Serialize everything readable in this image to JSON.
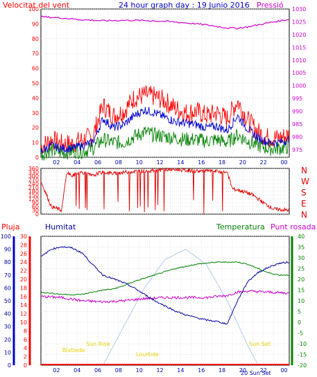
{
  "header": {
    "wind_label": "Velocitat del vent",
    "title": "24 hour graph day : 19 Junio 2016",
    "pressure_label": "Pressió"
  },
  "lower_header": {
    "rain_label": "Pluja",
    "humidity_label": "Humitat",
    "temperature_label": "Temperatura",
    "dewpoint_label": "Punt rosada"
  },
  "colors": {
    "wind": "#ff0000",
    "wind_avg": "#0000cc",
    "wind_low": "#008000",
    "pressure": "#cc00cc",
    "direction": "#dd0000",
    "rain": "#ff0000",
    "humidity": "#000099",
    "temperature": "#008000",
    "dewpoint": "#cc00cc",
    "sun": "#b0c8e8",
    "astro_labels": "#e8d000",
    "grid": "#c8c8c8",
    "frame": "#000000"
  },
  "x_tick_labels": [
    "02",
    "04",
    "06",
    "08",
    "10",
    "12",
    "14",
    "16",
    "18",
    "20",
    "22",
    "00"
  ],
  "direction_labels": [
    "N",
    "W",
    "S",
    "E",
    "N"
  ],
  "astro_labels": {
    "moonset": "Bixtlede",
    "sunrise": "Sun Rise",
    "moonrise": "Lourtide",
    "sunset": "Sun Set",
    "bottom_overlay": "20 Sun Set"
  },
  "chart_data": [
    {
      "type": "line",
      "name": "wind-pressure",
      "x_unit": "hour",
      "x_range": [
        0.5,
        24.5
      ],
      "left_axis": {
        "label": "Velocitat del vent",
        "range": [
          0,
          100
        ],
        "ticks": [
          0,
          10,
          20,
          30,
          40,
          50,
          60,
          70,
          80,
          90,
          100
        ]
      },
      "right_axis": {
        "label": "Pressió",
        "range": [
          972,
          1030
        ],
        "ticks": [
          975,
          980,
          985,
          990,
          995,
          1000,
          1005,
          1010,
          1015,
          1020,
          1025,
          1030
        ]
      },
      "grid": true,
      "series": [
        {
          "axis": "left",
          "x": [
            0.5,
            1.5,
            2.5,
            3.5,
            4.5,
            5.5,
            6.5,
            7.5,
            8.5,
            9.5,
            10.5,
            11.5,
            12.5,
            13.5,
            14.5,
            15.5,
            16.5,
            17.5,
            18.5,
            19.5,
            20.5,
            21.5,
            22.5,
            23.5,
            24.5
          ],
          "values": [
            7,
            12,
            9,
            9,
            12,
            14,
            35,
            28,
            31,
            40,
            42,
            41,
            38,
            33,
            30,
            31,
            28,
            30,
            26,
            38,
            25,
            17,
            13,
            13,
            15
          ],
          "amplitude": 7
        },
        {
          "axis": "left",
          "x": [
            0.5,
            1.5,
            2.5,
            3.5,
            4.5,
            5.5,
            6.5,
            7.5,
            8.5,
            9.5,
            10.5,
            11.5,
            12.5,
            13.5,
            14.5,
            15.5,
            16.5,
            17.5,
            18.5,
            19.5,
            20.5,
            21.5,
            22.5,
            23.5,
            24.5
          ],
          "values": [
            4,
            8,
            6,
            6,
            8,
            10,
            26,
            20,
            22,
            28,
            32,
            30,
            27,
            24,
            23,
            22,
            20,
            21,
            18,
            28,
            19,
            13,
            10,
            10,
            12
          ],
          "amplitude": 3
        },
        {
          "axis": "left",
          "x": [
            0.5,
            1.5,
            2.5,
            3.5,
            4.5,
            5.5,
            6.5,
            7.5,
            8.5,
            9.5,
            10.5,
            11.5,
            12.5,
            13.5,
            14.5,
            15.5,
            16.5,
            17.5,
            18.5,
            19.5,
            20.5,
            21.5,
            22.5,
            23.5,
            24.5
          ],
          "values": [
            2,
            5,
            3,
            4,
            4,
            6,
            12,
            10,
            10,
            14,
            17,
            15,
            14,
            13,
            12,
            12,
            11,
            12,
            10,
            15,
            11,
            8,
            6,
            6,
            7
          ],
          "amplitude": 5
        },
        {
          "axis": "right",
          "x": [
            0.5,
            2.5,
            4.5,
            6.5,
            8.5,
            10.5,
            12.5,
            14.5,
            16.5,
            18.5,
            19.5,
            20.5,
            22.5,
            24.5
          ],
          "values": [
            1027,
            1026.5,
            1025.8,
            1025.4,
            1025.6,
            1025.5,
            1025.2,
            1024.6,
            1023.8,
            1022.6,
            1022.5,
            1023.0,
            1024.6,
            1026.0
          ],
          "amplitude": 0.3
        }
      ]
    },
    {
      "type": "scatter",
      "name": "wind-direction",
      "x_unit": "hour",
      "x_range": [
        0.5,
        24.5
      ],
      "y_axis": {
        "range": [
          0,
          360
        ],
        "ticks": [
          0,
          30,
          60,
          90,
          120,
          150,
          180,
          210,
          240,
          270,
          300,
          330,
          360
        ]
      },
      "grid": true,
      "series": [
        {
          "x": [
            0.5,
            1.5,
            2.5,
            3.0,
            3.5,
            4.0,
            4.5,
            5.5,
            6.0,
            6.5,
            7.5,
            8.5,
            9.5,
            10.5,
            11.5,
            12.5,
            13.5,
            14.5,
            15.5,
            16.5,
            17.5,
            18.5,
            19.0,
            20.0,
            21.0,
            22.0,
            23.0,
            24.5
          ],
          "values": [
            260,
            60,
            30,
            330,
            300,
            320,
            330,
            300,
            320,
            330,
            320,
            330,
            335,
            340,
            345,
            350,
            350,
            345,
            340,
            340,
            335,
            330,
            200,
            180,
            150,
            90,
            40,
            30
          ],
          "amplitude": 15
        }
      ]
    },
    {
      "type": "line",
      "name": "rain-humidity-temperature-dewpoint",
      "x_unit": "hour",
      "x_range": [
        0.5,
        24.5
      ],
      "left_axis_rain": {
        "label": "Pluja",
        "range": [
          0,
          30
        ],
        "ticks": [
          0,
          2,
          4,
          6,
          8,
          10,
          12,
          14,
          16,
          18,
          20,
          22,
          24,
          26,
          28,
          30
        ]
      },
      "left_axis_humidity": {
        "label": "Humitat",
        "range": [
          0,
          100
        ],
        "ticks": [
          0,
          10,
          20,
          30,
          40,
          50,
          60,
          70,
          80,
          90,
          100
        ]
      },
      "right_axis": {
        "label": "Temperatura",
        "range": [
          -20,
          40
        ],
        "ticks": [
          -20,
          -15,
          -10,
          -5,
          0,
          5,
          10,
          15,
          20,
          25,
          30,
          35,
          40
        ]
      },
      "grid": true,
      "series": [
        {
          "axis": "humidity",
          "x": [
            0.5,
            1.5,
            2.5,
            3.5,
            4.5,
            5.5,
            6.5,
            7.5,
            8.5,
            9.5,
            10.5,
            11.5,
            12.5,
            13.5,
            14.5,
            15.5,
            16.5,
            17.5,
            18.5,
            19.5,
            20.5,
            21.5,
            22.5,
            23.5,
            24.5
          ],
          "values": [
            84,
            90,
            92,
            91,
            87,
            78,
            70,
            67,
            64,
            60,
            55,
            50,
            46,
            42,
            39,
            37,
            35,
            34,
            32,
            50,
            65,
            72,
            76,
            79,
            80
          ]
        },
        {
          "axis": "temperature",
          "x": [
            0.5,
            1.5,
            2.5,
            3.5,
            4.5,
            5.5,
            6.5,
            7.5,
            8.5,
            9.5,
            10.5,
            11.5,
            12.5,
            13.5,
            14.5,
            15.5,
            16.5,
            17.5,
            18.5,
            19.5,
            20.5,
            21.5,
            22.5,
            23.5,
            24.5
          ],
          "values": [
            14,
            13.5,
            13,
            12.8,
            13,
            14,
            15,
            15.5,
            17,
            19,
            20.5,
            22,
            23.5,
            25,
            26,
            27,
            27.5,
            28,
            28,
            28,
            27,
            25,
            23,
            22,
            22
          ]
        },
        {
          "axis": "temperature",
          "x": [
            0.5,
            2.5,
            4.5,
            6.5,
            8.5,
            10.5,
            12.5,
            14.5,
            16.5,
            18.5,
            19.5,
            20.5,
            22.5,
            24.5
          ],
          "values": [
            12,
            11.5,
            10,
            9.5,
            10,
            11,
            11.5,
            11.5,
            11.5,
            12.5,
            14,
            14.5,
            14,
            13.5
          ]
        },
        {
          "axis": "sun",
          "x": [
            6.5,
            8.5,
            10.5,
            12.5,
            14.5,
            16.5,
            18.5,
            20.5,
            21.5
          ],
          "values": [
            0,
            30,
            60,
            82,
            90,
            78,
            50,
            15,
            0
          ]
        }
      ]
    }
  ]
}
